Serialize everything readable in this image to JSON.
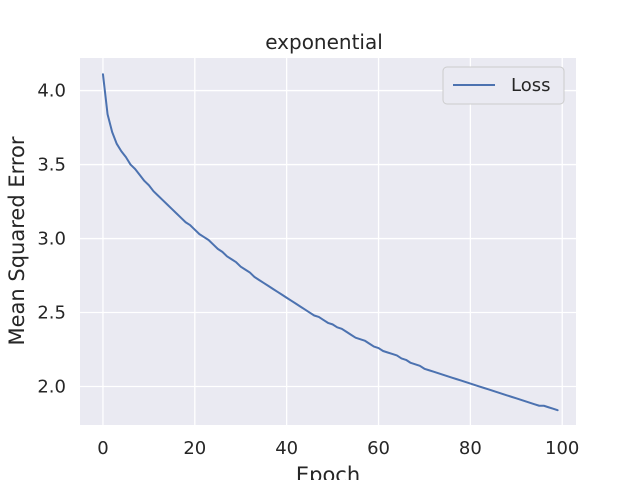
{
  "chart_data": {
    "type": "line",
    "title": "exponential",
    "xlabel": "Epoch",
    "ylabel": "Mean Squared Error",
    "xlim": [
      -5,
      103
    ],
    "ylim": [
      1.74,
      4.22
    ],
    "xticks": [
      0,
      20,
      40,
      60,
      80,
      100
    ],
    "yticks": [
      2.0,
      2.5,
      3.0,
      3.5,
      4.0
    ],
    "ytick_labels": [
      "2.0",
      "2.5",
      "3.0",
      "3.5",
      "4.0"
    ],
    "grid": true,
    "legend_position": "top-right",
    "series": [
      {
        "name": "Loss",
        "color": "#4c72b0",
        "x": [
          0,
          1,
          2,
          3,
          4,
          5,
          6,
          7,
          8,
          9,
          10,
          11,
          12,
          13,
          14,
          15,
          16,
          17,
          18,
          19,
          20,
          21,
          22,
          23,
          24,
          25,
          26,
          27,
          28,
          29,
          30,
          31,
          32,
          33,
          34,
          35,
          36,
          37,
          38,
          39,
          40,
          41,
          42,
          43,
          44,
          45,
          46,
          47,
          48,
          49,
          50,
          51,
          52,
          53,
          54,
          55,
          56,
          57,
          58,
          59,
          60,
          61,
          62,
          63,
          64,
          65,
          66,
          67,
          68,
          69,
          70,
          71,
          72,
          73,
          74,
          75,
          76,
          77,
          78,
          79,
          80,
          81,
          82,
          83,
          84,
          85,
          86,
          87,
          88,
          89,
          90,
          91,
          92,
          93,
          94,
          95,
          96,
          97,
          98,
          99
        ],
        "values": [
          4.11,
          3.84,
          3.72,
          3.64,
          3.59,
          3.55,
          3.5,
          3.47,
          3.43,
          3.39,
          3.36,
          3.32,
          3.29,
          3.26,
          3.23,
          3.2,
          3.17,
          3.14,
          3.11,
          3.09,
          3.06,
          3.03,
          3.01,
          2.99,
          2.96,
          2.93,
          2.91,
          2.88,
          2.86,
          2.84,
          2.81,
          2.79,
          2.77,
          2.74,
          2.72,
          2.7,
          2.68,
          2.66,
          2.64,
          2.62,
          2.6,
          2.58,
          2.56,
          2.54,
          2.52,
          2.5,
          2.48,
          2.47,
          2.45,
          2.43,
          2.42,
          2.4,
          2.39,
          2.37,
          2.35,
          2.33,
          2.32,
          2.31,
          2.29,
          2.27,
          2.26,
          2.24,
          2.23,
          2.22,
          2.21,
          2.19,
          2.18,
          2.16,
          2.15,
          2.14,
          2.12,
          2.11,
          2.1,
          2.09,
          2.08,
          2.07,
          2.06,
          2.05,
          2.04,
          2.03,
          2.02,
          2.01,
          2.0,
          1.99,
          1.98,
          1.97,
          1.96,
          1.95,
          1.94,
          1.93,
          1.92,
          1.91,
          1.9,
          1.89,
          1.88,
          1.87,
          1.87,
          1.86,
          1.85,
          1.84
        ]
      }
    ]
  }
}
